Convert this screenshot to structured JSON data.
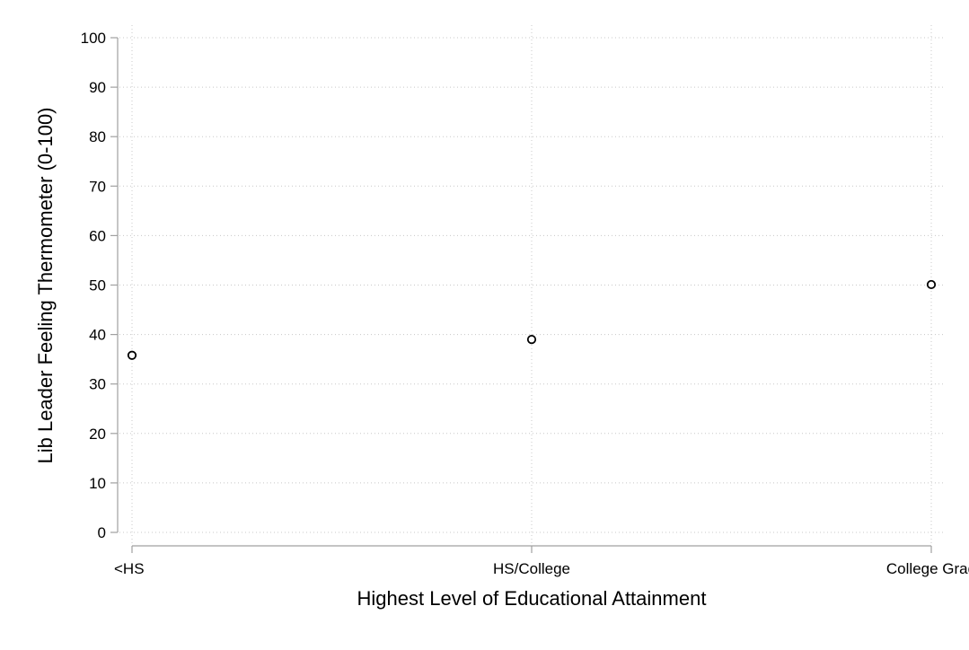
{
  "chart_data": {
    "type": "scatter",
    "title": "",
    "xlabel": "Highest Level of Educational Attainment",
    "ylabel": "Lib Leader Feeling Thermometer (0-100)",
    "categories": [
      "<HS",
      "HS/College",
      "College Grad"
    ],
    "series": [
      {
        "values": [
          35.8,
          39,
          50.1
        ]
      }
    ],
    "ylim": [
      0,
      100
    ],
    "yticks": [
      0,
      10,
      20,
      30,
      40,
      50,
      60,
      70,
      80,
      90,
      100
    ],
    "grid": true,
    "marker": "hollow-circle",
    "colors": {
      "marker": "#000000",
      "axis": "#a0a0a0",
      "grid": "#c8c8c8"
    }
  }
}
